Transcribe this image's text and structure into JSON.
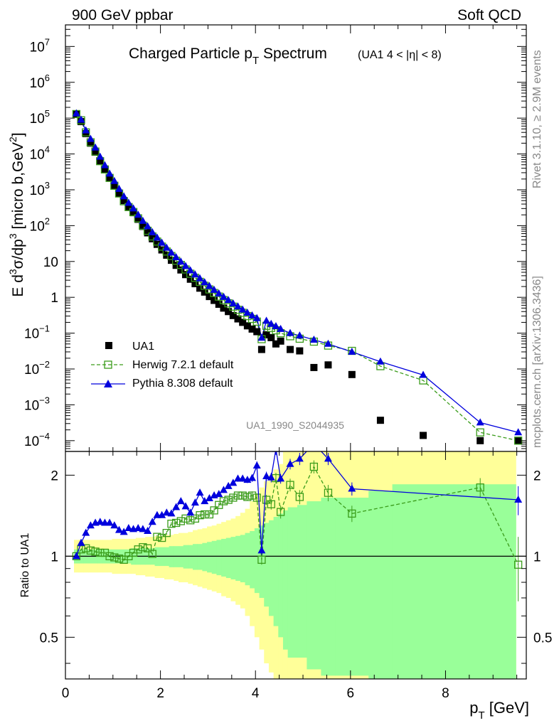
{
  "header": {
    "left": "900 GeV ppbar",
    "right": "Soft QCD"
  },
  "side_labels": {
    "rivet": "Rivet 3.1.10, ≥ 2.9M events",
    "mcplots": "mcplots.cern.ch [arXiv:1306.3436]"
  },
  "colors": {
    "data": "#000000",
    "herwig": "#3a9c1a",
    "pythia": "#0000dd",
    "band_outer": "#ffff99",
    "band_inner": "#99ff99"
  },
  "chart_data": [
    {
      "type": "scatter",
      "title_main": "Charged Particle p",
      "title_sub": "T",
      "title_tail": " Spectrum",
      "title_note": "(UA1   4 < |η| < 8)",
      "analysis_tag": "UA1_1990_S2044935",
      "ylabel_prefix": "E d",
      "ylabel_rest": "σ/dp",
      "ylabel_unit": " [micro b,GeV",
      "yscale": "log",
      "ylim": [
        5e-05,
        40000000.0
      ],
      "xlim": [
        0,
        9.7
      ],
      "legend_position": "bottom-left",
      "legend": [
        "UA1",
        "Herwig 7.2.1 default",
        "Pythia 8.308 default"
      ],
      "series": [
        {
          "name": "UA1",
          "x": [
            0.23,
            0.33,
            0.43,
            0.53,
            0.63,
            0.73,
            0.83,
            0.93,
            1.03,
            1.13,
            1.23,
            1.33,
            1.43,
            1.53,
            1.63,
            1.73,
            1.83,
            1.93,
            2.03,
            2.13,
            2.23,
            2.33,
            2.43,
            2.53,
            2.63,
            2.73,
            2.83,
            2.93,
            3.03,
            3.13,
            3.23,
            3.33,
            3.43,
            3.53,
            3.63,
            3.73,
            3.83,
            3.93,
            4.03,
            4.13,
            4.23,
            4.33,
            4.43,
            4.53,
            4.73,
            4.93,
            5.23,
            5.53,
            6.03,
            6.63,
            7.53,
            8.73,
            9.53
          ],
          "y": [
            130000.0,
            80000.0,
            37000.0,
            20000.0,
            11200.0,
            6200.0,
            3600.0,
            2150.0,
            1300.0,
            800,
            500,
            330,
            230,
            150,
            95,
            63,
            43,
            30,
            21,
            15,
            10.8,
            7.8,
            5.8,
            4.3,
            3.2,
            2.4,
            1.8,
            1.4,
            1.05,
            0.82,
            0.64,
            0.5,
            0.4,
            0.31,
            0.25,
            0.2,
            0.16,
            0.13,
            0.11,
            0.035,
            0.09,
            0.075,
            0.05,
            0.06,
            0.035,
            0.032,
            0.011,
            0.013,
            0.007,
            0.00037,
            0.00014,
            0.0001,
            0.0001
          ]
        },
        {
          "name": "Herwig 7.2.1 default",
          "style": "dashed-open-square",
          "x": [
            0.23,
            0.33,
            0.43,
            0.53,
            0.63,
            0.73,
            0.83,
            0.93,
            1.03,
            1.13,
            1.23,
            1.33,
            1.43,
            1.53,
            1.63,
            1.73,
            1.83,
            1.93,
            2.03,
            2.13,
            2.23,
            2.33,
            2.43,
            2.53,
            2.63,
            2.73,
            2.83,
            2.93,
            3.03,
            3.13,
            3.23,
            3.33,
            3.43,
            3.53,
            3.63,
            3.73,
            3.83,
            3.93,
            4.03,
            4.13,
            4.23,
            4.33,
            4.43,
            4.53,
            4.73,
            4.93,
            5.23,
            5.53,
            6.03,
            6.63,
            7.53,
            8.73,
            9.53
          ],
          "y": [
            130000.0,
            87000.0,
            40000.0,
            21200.0,
            11700.0,
            6300.0,
            3700.0,
            2150.0,
            1300.0,
            790,
            480,
            330,
            240,
            160,
            100,
            72,
            50,
            36,
            26,
            19,
            14.2,
            10.5,
            8.0,
            6.0,
            4.55,
            3.5,
            2.7,
            2.1,
            1.66,
            1.32,
            1.05,
            0.84,
            0.68,
            0.55,
            0.45,
            0.37,
            0.3,
            0.25,
            0.21,
            0.068,
            0.16,
            0.14,
            0.12,
            0.1,
            0.082,
            0.07,
            0.058,
            0.045,
            0.032,
            0.012,
            0.0048,
            0.00017,
            0.0001
          ]
        },
        {
          "name": "Pythia 8.308 default",
          "style": "solid-filled-triangle",
          "x": [
            0.23,
            0.33,
            0.43,
            0.53,
            0.63,
            0.73,
            0.83,
            0.93,
            1.03,
            1.13,
            1.23,
            1.33,
            1.43,
            1.53,
            1.63,
            1.73,
            1.83,
            1.93,
            2.03,
            2.13,
            2.23,
            2.33,
            2.43,
            2.53,
            2.63,
            2.73,
            2.83,
            2.93,
            3.03,
            3.13,
            3.23,
            3.33,
            3.43,
            3.53,
            3.63,
            3.73,
            3.83,
            3.93,
            4.03,
            4.13,
            4.23,
            4.33,
            4.43,
            4.53,
            4.73,
            4.93,
            5.23,
            5.53,
            6.03,
            6.63,
            7.53,
            8.73,
            9.53
          ],
          "y": [
            135000.0,
            90000.0,
            45000.0,
            26000.0,
            15000.0,
            8300.0,
            4800.0,
            2800.0,
            1750.0,
            1050.0,
            650,
            430,
            300,
            200,
            135,
            95,
            65,
            46,
            33,
            24,
            17.5,
            13,
            9.8,
            7.4,
            5.6,
            4.3,
            3.35,
            2.6,
            2.05,
            1.6,
            1.27,
            1.02,
            0.83,
            0.67,
            0.55,
            0.45,
            0.37,
            0.31,
            0.26,
            0.074,
            0.22,
            0.18,
            0.155,
            0.13,
            0.1,
            0.085,
            0.065,
            0.05,
            0.03,
            0.016,
            0.0068,
            0.00032,
            0.00017
          ]
        }
      ]
    },
    {
      "type": "line",
      "ylabel": "Ratio to UA1",
      "xlabel_main": "p",
      "xlabel_sub": "T",
      "xlabel_unit": " [GeV]",
      "yscale": "log",
      "ylim": [
        0.35,
        2.45
      ],
      "xlim": [
        0,
        9.7
      ],
      "x_ticks": [
        0,
        2,
        4,
        6,
        8
      ],
      "y_ticks": [
        0.5,
        1,
        2
      ],
      "reference_line": 1,
      "band_edges": [
        0.18,
        0.28,
        0.38,
        0.48,
        0.58,
        0.68,
        0.78,
        0.88,
        0.98,
        1.08,
        1.18,
        1.28,
        1.38,
        1.48,
        1.58,
        1.68,
        1.78,
        1.88,
        1.98,
        2.08,
        2.18,
        2.28,
        2.38,
        2.48,
        2.58,
        2.68,
        2.78,
        2.88,
        2.98,
        3.08,
        3.18,
        3.28,
        3.38,
        3.48,
        3.58,
        3.68,
        3.78,
        3.88,
        3.98,
        4.08,
        4.18,
        4.28,
        4.38,
        4.48,
        4.58,
        4.68,
        4.88,
        5.08,
        5.38,
        5.68,
        6.38,
        6.88,
        8.18,
        9.48
      ],
      "band_outer_lo": [
        0.87,
        0.87,
        0.87,
        0.87,
        0.87,
        0.87,
        0.87,
        0.87,
        0.86,
        0.86,
        0.86,
        0.86,
        0.86,
        0.85,
        0.85,
        0.84,
        0.84,
        0.83,
        0.83,
        0.82,
        0.82,
        0.81,
        0.8,
        0.8,
        0.79,
        0.78,
        0.77,
        0.76,
        0.75,
        0.74,
        0.73,
        0.71,
        0.7,
        0.68,
        0.66,
        0.64,
        0.6,
        0.55,
        0.5,
        0.45,
        0.4,
        0.37,
        0.33,
        0.3,
        0.3,
        0.3,
        0.3,
        0.3,
        0.3,
        0.3,
        0.3,
        0.3,
        0.3
      ],
      "band_outer_hi": [
        1.15,
        1.15,
        1.15,
        1.15,
        1.15,
        1.15,
        1.15,
        1.15,
        1.16,
        1.16,
        1.16,
        1.16,
        1.16,
        1.17,
        1.17,
        1.18,
        1.18,
        1.19,
        1.19,
        1.2,
        1.2,
        1.21,
        1.22,
        1.22,
        1.23,
        1.25,
        1.26,
        1.27,
        1.29,
        1.3,
        1.32,
        1.34,
        1.36,
        1.38,
        1.41,
        1.45,
        1.5,
        1.6,
        1.7,
        1.8,
        1.9,
        2.0,
        2.1,
        2.2,
        2.45,
        2.45,
        2.45,
        2.45,
        2.45,
        2.45,
        2.45,
        2.45,
        2.45
      ],
      "band_inner_lo": [
        0.94,
        0.94,
        0.94,
        0.94,
        0.94,
        0.94,
        0.94,
        0.94,
        0.94,
        0.94,
        0.94,
        0.94,
        0.93,
        0.93,
        0.93,
        0.93,
        0.93,
        0.92,
        0.92,
        0.92,
        0.91,
        0.91,
        0.91,
        0.9,
        0.9,
        0.89,
        0.89,
        0.88,
        0.87,
        0.86,
        0.85,
        0.84,
        0.83,
        0.82,
        0.81,
        0.8,
        0.78,
        0.76,
        0.73,
        0.7,
        0.65,
        0.6,
        0.55,
        0.5,
        0.45,
        0.42,
        0.42,
        0.38,
        0.36,
        0.36,
        0.3,
        0.3,
        0.3
      ],
      "band_inner_hi": [
        1.06,
        1.06,
        1.06,
        1.06,
        1.06,
        1.06,
        1.06,
        1.06,
        1.06,
        1.06,
        1.06,
        1.06,
        1.07,
        1.07,
        1.07,
        1.07,
        1.07,
        1.08,
        1.08,
        1.08,
        1.09,
        1.09,
        1.09,
        1.1,
        1.1,
        1.11,
        1.11,
        1.12,
        1.13,
        1.14,
        1.15,
        1.16,
        1.17,
        1.18,
        1.19,
        1.2,
        1.22,
        1.24,
        1.27,
        1.3,
        1.33,
        1.36,
        1.4,
        1.44,
        1.48,
        1.52,
        1.55,
        1.6,
        1.65,
        1.65,
        1.75,
        1.85,
        1.85
      ],
      "series": [
        {
          "name": "Herwig 7.2.1 default",
          "x": [
            0.23,
            0.33,
            0.43,
            0.53,
            0.63,
            0.73,
            0.83,
            0.93,
            1.03,
            1.13,
            1.23,
            1.33,
            1.43,
            1.53,
            1.63,
            1.73,
            1.83,
            1.93,
            2.03,
            2.13,
            2.23,
            2.33,
            2.43,
            2.53,
            2.63,
            2.73,
            2.83,
            2.93,
            3.03,
            3.13,
            3.23,
            3.33,
            3.43,
            3.53,
            3.63,
            3.73,
            3.83,
            3.93,
            4.03,
            4.13,
            4.23,
            4.33,
            4.43,
            4.53,
            4.73,
            4.93,
            5.23,
            5.53,
            6.03,
            8.73,
            9.53
          ],
          "y": [
            1.0,
            1.06,
            1.07,
            1.05,
            1.04,
            1.03,
            1.03,
            1.0,
            0.99,
            0.98,
            0.97,
            1.0,
            1.03,
            1.06,
            1.08,
            1.07,
            1.02,
            1.18,
            1.17,
            1.22,
            1.32,
            1.33,
            1.35,
            1.38,
            1.36,
            1.38,
            1.42,
            1.43,
            1.43,
            1.48,
            1.55,
            1.6,
            1.62,
            1.65,
            1.68,
            1.68,
            1.66,
            1.68,
            1.65,
            0.97,
            1.62,
            1.56,
            1.95,
            1.46,
            1.84,
            1.66,
            2.15,
            1.72,
            1.44,
            1.8,
            0.93
          ],
          "yerr": [
            0.01,
            0.01,
            0.01,
            0.01,
            0.01,
            0.01,
            0.01,
            0.01,
            0.01,
            0.01,
            0.01,
            0.01,
            0.01,
            0.01,
            0.01,
            0.01,
            0.01,
            0.02,
            0.02,
            0.02,
            0.02,
            0.02,
            0.02,
            0.02,
            0.02,
            0.02,
            0.02,
            0.03,
            0.03,
            0.03,
            0.03,
            0.03,
            0.04,
            0.04,
            0.04,
            0.05,
            0.05,
            0.06,
            0.06,
            0.04,
            0.07,
            0.07,
            0.09,
            0.08,
            0.1,
            0.1,
            0.12,
            0.12,
            0.1,
            0.15,
            0.25
          ]
        },
        {
          "name": "Pythia 8.308 default",
          "x": [
            0.23,
            0.33,
            0.43,
            0.53,
            0.63,
            0.73,
            0.83,
            0.93,
            1.03,
            1.13,
            1.23,
            1.33,
            1.43,
            1.53,
            1.63,
            1.73,
            1.83,
            1.93,
            2.03,
            2.13,
            2.23,
            2.33,
            2.43,
            2.53,
            2.63,
            2.73,
            2.83,
            2.93,
            3.03,
            3.13,
            3.23,
            3.33,
            3.43,
            3.53,
            3.63,
            3.73,
            3.83,
            3.93,
            4.03,
            4.13,
            4.23,
            4.33,
            4.43,
            4.53,
            4.73,
            4.93,
            5.23,
            5.53,
            6.03,
            9.53
          ],
          "y": [
            1.0,
            1.12,
            1.22,
            1.3,
            1.33,
            1.34,
            1.33,
            1.33,
            1.3,
            1.25,
            1.23,
            1.27,
            1.26,
            1.27,
            1.26,
            1.24,
            1.34,
            1.42,
            1.42,
            1.45,
            1.44,
            1.52,
            1.6,
            1.53,
            1.45,
            1.58,
            1.72,
            1.6,
            1.64,
            1.68,
            1.7,
            1.76,
            1.82,
            1.87,
            1.94,
            1.94,
            1.92,
            1.95,
            2.17,
            1.05,
            1.98,
            1.96,
            2.5,
            1.94,
            2.2,
            2.3,
            2.62,
            2.3,
            1.78,
            1.62
          ],
          "yerr": [
            0.01,
            0.01,
            0.01,
            0.01,
            0.01,
            0.01,
            0.01,
            0.01,
            0.01,
            0.01,
            0.01,
            0.01,
            0.01,
            0.01,
            0.01,
            0.01,
            0.02,
            0.02,
            0.02,
            0.02,
            0.02,
            0.02,
            0.02,
            0.02,
            0.02,
            0.02,
            0.03,
            0.03,
            0.03,
            0.03,
            0.03,
            0.04,
            0.04,
            0.04,
            0.05,
            0.05,
            0.05,
            0.06,
            0.08,
            0.04,
            0.08,
            0.08,
            0.12,
            0.08,
            0.1,
            0.12,
            0.14,
            0.12,
            0.1,
            0.2
          ]
        }
      ]
    }
  ]
}
